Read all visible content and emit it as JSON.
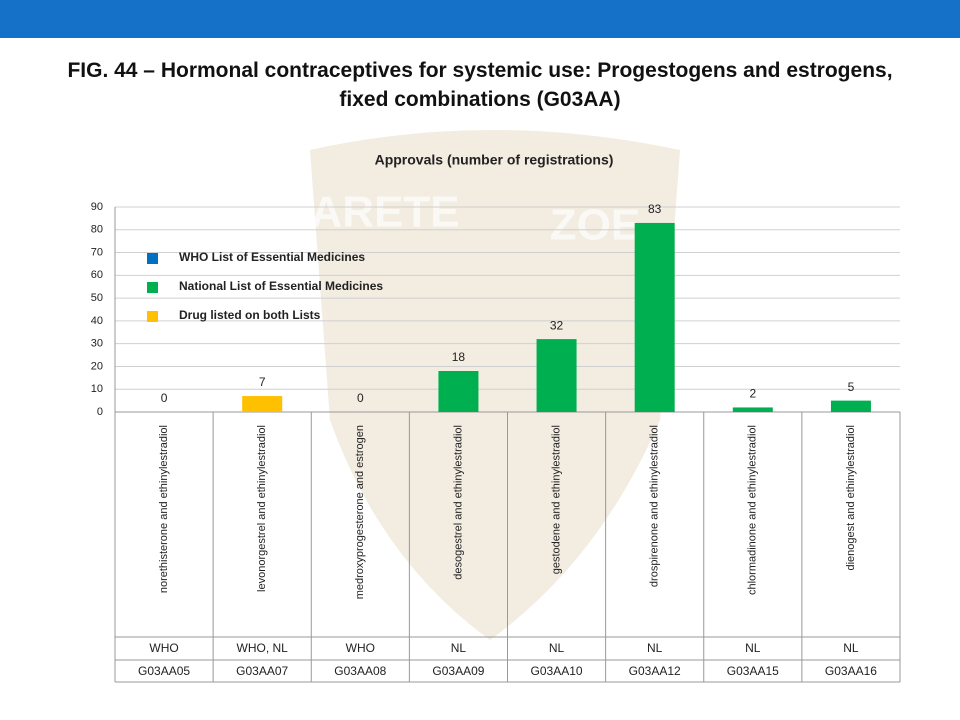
{
  "chart_data": {
    "type": "bar",
    "title": "FIG. 44 – Hormonal contraceptives for systemic use: Progestogens and estrogens, fixed combinations (G03AA)",
    "subtitle": "Approvals (number of registrations)",
    "watermark": [
      "ARETE",
      "ZOE"
    ],
    "categories": [
      "norethisterone and ethinylestradiol",
      "levonorgestrel and ethinylestradiol",
      "medroxyprogesterone and estrogen",
      "desogestrel and ethinylestradiol",
      "gestodene and ethinylestradiol",
      "drospirenone and ethinylestradiol",
      "chlormadinone and ethinylestradiol",
      "dienogest and ethinylestradiol"
    ],
    "values": [
      0,
      7,
      0,
      18,
      32,
      83,
      2,
      5
    ],
    "colors": [
      "#0070c0",
      "#ffc000",
      "#0070c0",
      "#00b050",
      "#00b050",
      "#00b050",
      "#00b050",
      "#00b050"
    ],
    "list_labels": [
      "WHO",
      "WHO, NL",
      "WHO",
      "NL",
      "NL",
      "NL",
      "NL",
      "NL"
    ],
    "codes": [
      "G03AA05",
      "G03AA07",
      "G03AA08",
      "G03AA09",
      "G03AA10",
      "G03AA12",
      "G03AA15",
      "G03AA16"
    ],
    "legend": [
      {
        "label": "WHO List of Essential Medicines",
        "color": "#0070c0"
      },
      {
        "label": "National List of Essential Medicines",
        "color": "#00b050"
      },
      {
        "label": "Drug listed on both Lists",
        "color": "#ffc000"
      }
    ],
    "ylim": [
      0,
      90
    ],
    "yticks": [
      0,
      10,
      20,
      30,
      40,
      50,
      60,
      70,
      80,
      90
    ],
    "grid": true
  }
}
